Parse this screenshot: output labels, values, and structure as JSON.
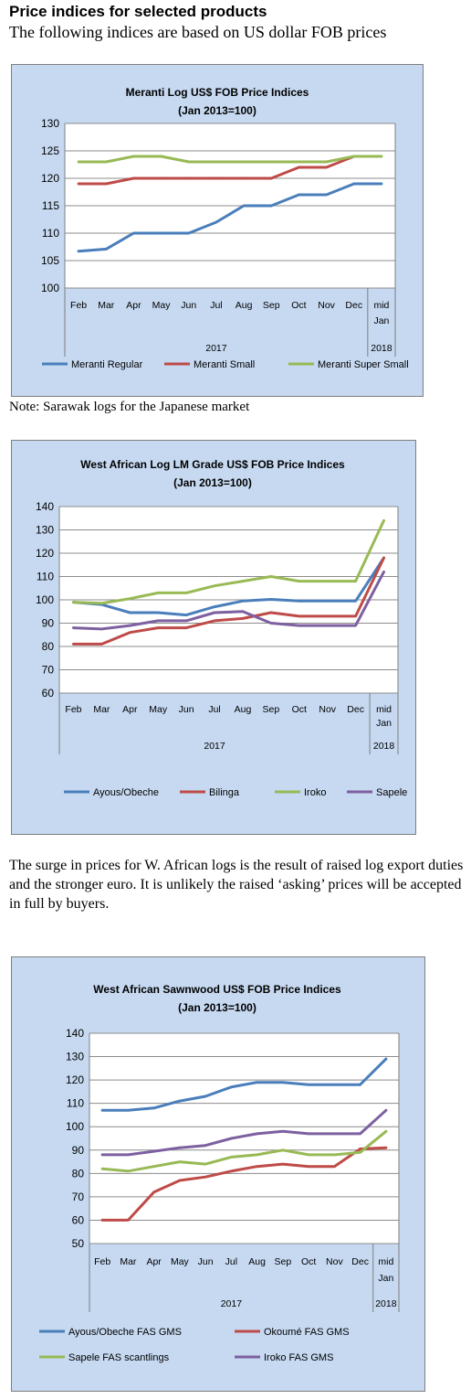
{
  "header": {
    "title": "Price indices for selected products",
    "subtitle": "The following indices are based on US dollar FOB prices"
  },
  "note": "Note: Sarawak logs for the Japanese market",
  "paragraph": "The surge in prices for W. African logs is the result of raised log export duties and the stronger euro. It is unlikely the raised ‘asking’ prices will be accepted in full by buyers.",
  "chart_data": [
    {
      "type": "line",
      "title": "Meranti Log US$ FOB Price Indices",
      "subtitle": "(Jan 2013=100)",
      "categories": [
        "Feb",
        "Mar",
        "Apr",
        "May",
        "Jun",
        "Jul",
        "Aug",
        "Sep",
        "Oct",
        "Nov",
        "Dec",
        "mid Jan"
      ],
      "year_labels": [
        "2017",
        "2018"
      ],
      "ylim": [
        100,
        130
      ],
      "yticks": [
        100,
        105,
        110,
        115,
        120,
        125,
        130
      ],
      "grid": true,
      "legend": "bottom",
      "series": [
        {
          "name": "Meranti Regular",
          "color": "#4a7ebb",
          "values": [
            106.7,
            107.1,
            110,
            110,
            110,
            112,
            115,
            115,
            117,
            117,
            119,
            119
          ]
        },
        {
          "name": "Meranti Small",
          "color": "#be4b48",
          "values": [
            119,
            119,
            120,
            120,
            120,
            120,
            120,
            120,
            122,
            122,
            124,
            null
          ]
        },
        {
          "name": "Meranti Super Small",
          "color": "#98b954",
          "values": [
            123,
            123,
            124,
            124,
            123,
            123,
            123,
            123,
            123,
            123,
            124,
            124
          ]
        }
      ]
    },
    {
      "type": "line",
      "title": "West African Log LM Grade US$ FOB Price Indices",
      "subtitle": "(Jan 2013=100)",
      "categories": [
        "Feb",
        "Mar",
        "Apr",
        "May",
        "Jun",
        "Jul",
        "Aug",
        "Sep",
        "Oct",
        "Nov",
        "Dec",
        "mid Jan"
      ],
      "year_labels": [
        "2017",
        "2018"
      ],
      "ylim": [
        60,
        140
      ],
      "yticks": [
        60,
        70,
        80,
        90,
        100,
        110,
        120,
        130,
        140
      ],
      "grid": true,
      "legend": "bottom",
      "series": [
        {
          "name": "Ayous/Obeche",
          "color": "#4a7ebb",
          "values": [
            99,
            98,
            94.5,
            94.5,
            93.5,
            97,
            99.5,
            100.2,
            99.5,
            99.5,
            99.5,
            118
          ]
        },
        {
          "name": "Bilinga",
          "color": "#be4b48",
          "values": [
            81,
            81,
            86,
            88,
            88,
            91,
            92,
            94.5,
            93,
            93,
            93,
            118
          ]
        },
        {
          "name": "Iroko",
          "color": "#98b954",
          "values": [
            99,
            98.5,
            100.5,
            103,
            103,
            106,
            108,
            110,
            108,
            108,
            108,
            134
          ]
        },
        {
          "name": "Sapele",
          "color": "#7d60a0",
          "values": [
            88,
            87.5,
            89,
            91,
            91,
            94.5,
            95,
            90,
            89,
            89,
            89,
            112
          ]
        }
      ]
    },
    {
      "type": "line",
      "title": "West African Sawnwood US$ FOB Price Indices",
      "subtitle": "(Jan 2013=100)",
      "categories": [
        "Feb",
        "Mar",
        "Apr",
        "May",
        "Jun",
        "Jul",
        "Aug",
        "Sep",
        "Oct",
        "Nov",
        "Dec",
        "mid Jan"
      ],
      "year_labels": [
        "2017",
        "2018"
      ],
      "ylim": [
        50,
        140
      ],
      "yticks": [
        50,
        60,
        70,
        80,
        90,
        100,
        110,
        120,
        130,
        140
      ],
      "grid": true,
      "legend": "bottom",
      "series": [
        {
          "name": "Ayous/Obeche  FAS GMS",
          "color": "#4a7ebb",
          "values": [
            107,
            107,
            108,
            111,
            113,
            117,
            119,
            119,
            118,
            118,
            118,
            129
          ]
        },
        {
          "name": "Okoumé  FAS GMS",
          "color": "#be4b48",
          "values": [
            60,
            60,
            72,
            77,
            78.5,
            81,
            83,
            84,
            83,
            83,
            90.5,
            91
          ]
        },
        {
          "name": "Sapele FAS scantlings",
          "color": "#98b954",
          "values": [
            82,
            81,
            83,
            85,
            84,
            87,
            88,
            90,
            88,
            88,
            89,
            98
          ]
        },
        {
          "name": "Iroko FAS GMS",
          "color": "#7d60a0",
          "values": [
            88,
            88,
            89.5,
            91,
            92,
            95,
            97,
            98,
            97,
            97,
            97,
            107
          ]
        }
      ]
    }
  ]
}
